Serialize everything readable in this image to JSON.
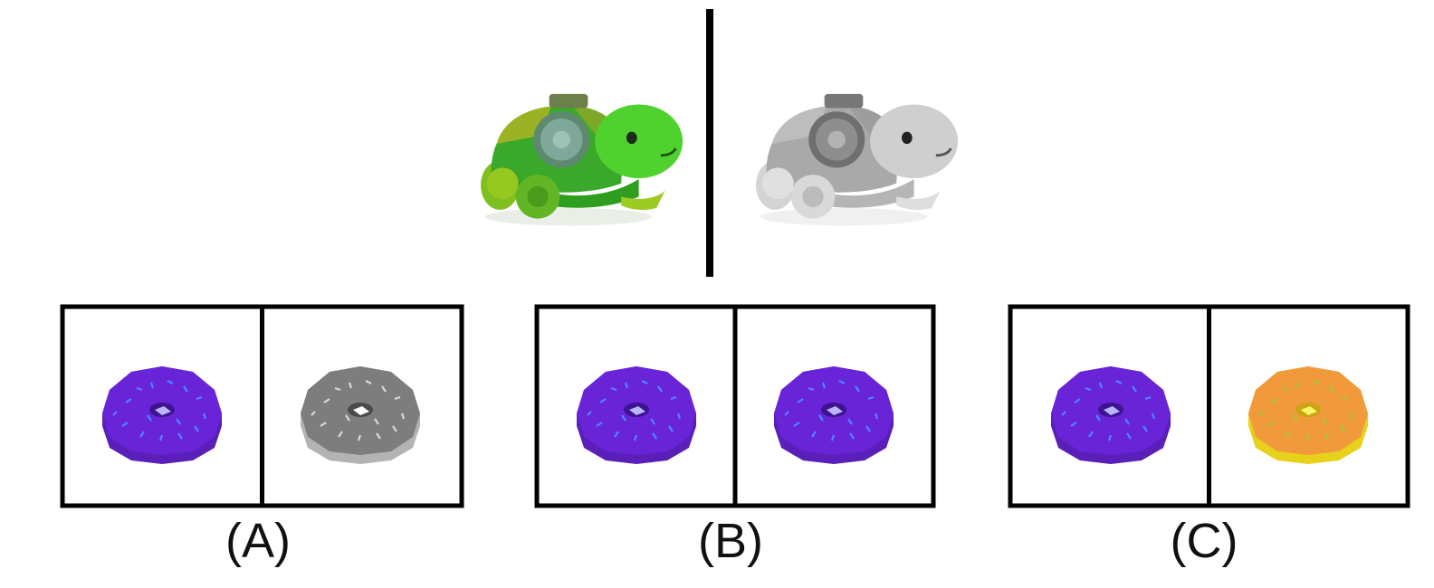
{
  "example": {
    "source_icon": "green-turtle-toy-icon",
    "target_icon": "grayscale-turtle-toy-icon"
  },
  "options": [
    {
      "label": "(A)",
      "left_icon": "purple-donut-icon",
      "right_icon": "grayscale-donut-icon"
    },
    {
      "label": "(B)",
      "left_icon": "purple-donut-icon",
      "right_icon": "purple-donut-icon"
    },
    {
      "label": "(C)",
      "left_icon": "purple-donut-icon",
      "right_icon": "orange-donut-icon"
    }
  ],
  "colors": {
    "turtle_green": "#3fbf2a",
    "turtle_gray": "#bdbdbd",
    "donut_purple": "#6a22d6",
    "donut_gray": "#8a8a8a",
    "donut_orange": "#f0993a",
    "donut_yellow": "#e8d21a"
  }
}
